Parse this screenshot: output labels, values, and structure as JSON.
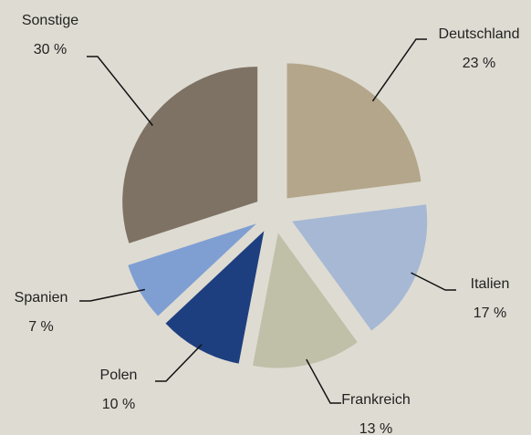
{
  "chart_data": {
    "type": "pie",
    "categories": [
      "Deutschland",
      "Italien",
      "Frankreich",
      "Polen",
      "Spanien",
      "Sonstige"
    ],
    "values": [
      23,
      17,
      13,
      10,
      7,
      30
    ],
    "value_labels": [
      "23 %",
      "17 %",
      "13 %",
      "10 %",
      "7 %",
      "30 %"
    ],
    "colors": [
      "#b3a68b",
      "#a6b8d4",
      "#c0bfa8",
      "#1e3f7f",
      "#7f9fd3",
      "#7e7264"
    ]
  }
}
